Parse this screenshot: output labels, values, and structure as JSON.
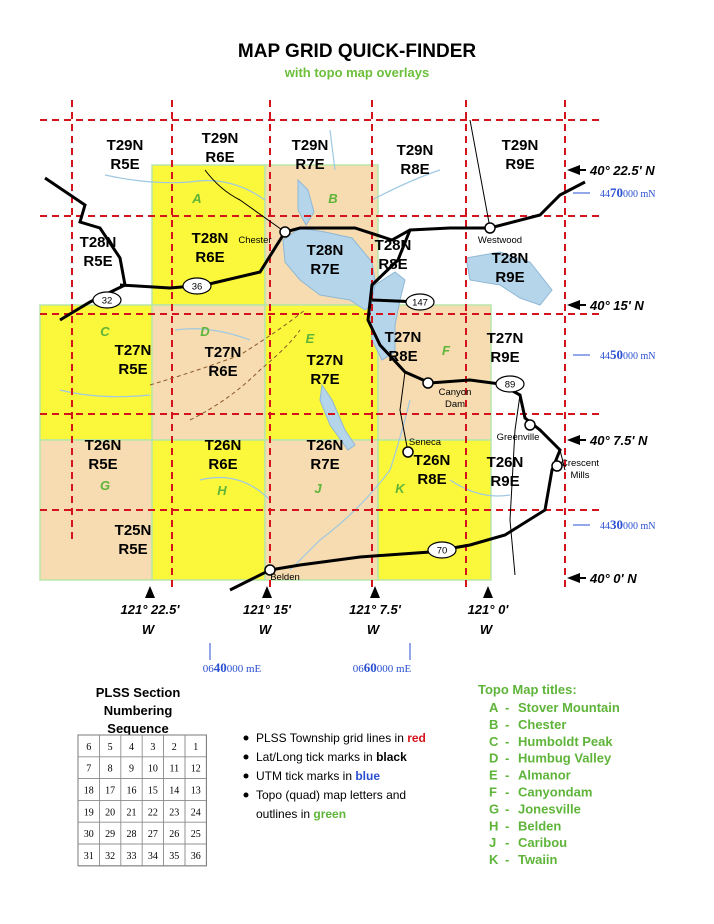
{
  "header": {
    "title": "MAP GRID QUICK-FINDER",
    "subtitle": "with topo map overlays"
  },
  "townships": [
    [
      "T29N",
      "R5E"
    ],
    [
      "T29N",
      "R6E"
    ],
    [
      "T29N",
      "R7E"
    ],
    [
      "T29N",
      "R8E"
    ],
    [
      "T29N",
      "R9E"
    ],
    [
      "T28N",
      "R5E"
    ],
    [
      "T28N",
      "R6E"
    ],
    [
      "T28N",
      "R7E"
    ],
    [
      "T28N",
      "R8E"
    ],
    [
      "T28N",
      "R9E"
    ],
    [
      "T27N",
      "R5E"
    ],
    [
      "T27N",
      "R6E"
    ],
    [
      "T27N",
      "R7E"
    ],
    [
      "T27N",
      "R8E"
    ],
    [
      "T27N",
      "R9E"
    ],
    [
      "T26N",
      "R5E"
    ],
    [
      "T26N",
      "R6E"
    ],
    [
      "T26N",
      "R7E"
    ],
    [
      "T26N",
      "R8E"
    ],
    [
      "T26N",
      "R9E"
    ],
    [
      "T25N",
      "R5E"
    ]
  ],
  "quads": [
    "A",
    "B",
    "C",
    "D",
    "E",
    "F",
    "G",
    "H",
    "J",
    "K"
  ],
  "places": [
    [
      "Chester"
    ],
    [
      "Westwood"
    ],
    [
      "Canyon",
      "Dam"
    ],
    [
      "Seneca"
    ],
    [
      "Greenville"
    ],
    [
      "Crescent",
      "Mills"
    ],
    [
      "Belden"
    ]
  ],
  "highways": [
    "32",
    "36",
    "147",
    "89",
    "70"
  ],
  "latitudes": [
    "40° 22.5' N",
    "40° 15' N",
    "40° 7.5' N",
    "40° 0' N"
  ],
  "longitudes": [
    [
      "121° 22.5'",
      "W"
    ],
    [
      "121° 15'",
      "W"
    ],
    [
      "121° 7.5'",
      "W"
    ],
    [
      "121° 0'",
      "W"
    ]
  ],
  "utm_north": [
    [
      "44",
      "70",
      "000 mN"
    ],
    [
      "44",
      "50",
      "000 mN"
    ],
    [
      "44",
      "30",
      "000 mN"
    ]
  ],
  "utm_east": [
    [
      "06",
      "40",
      "000 mE"
    ],
    [
      "06",
      "60",
      "000 mE"
    ]
  ],
  "plss": {
    "title": [
      "PLSS Section",
      "Numbering",
      "Sequence"
    ],
    "rows": [
      [
        "6",
        "5",
        "4",
        "3",
        "2",
        "1"
      ],
      [
        "7",
        "8",
        "9",
        "10",
        "11",
        "12"
      ],
      [
        "18",
        "17",
        "16",
        "15",
        "14",
        "13"
      ],
      [
        "19",
        "20",
        "21",
        "22",
        "23",
        "24"
      ],
      [
        "30",
        "29",
        "28",
        "27",
        "26",
        "25"
      ],
      [
        "31",
        "32",
        "33",
        "34",
        "35",
        "36"
      ]
    ]
  },
  "legend": [
    [
      "PLSS Township grid lines in ",
      "red"
    ],
    [
      "Lat/Long tick marks in ",
      "black"
    ],
    [
      "UTM tick marks in ",
      "blue"
    ],
    [
      "Topo (quad) map letters and",
      "outlines in ",
      "green"
    ]
  ],
  "topo": {
    "heading": "Topo Map titles:",
    "items": [
      [
        "A",
        "-",
        "Stover Mountain"
      ],
      [
        "B",
        "-",
        "Chester"
      ],
      [
        "C",
        "-",
        "Humboldt Peak"
      ],
      [
        "D",
        "-",
        "Humbug Valley"
      ],
      [
        "E",
        "-",
        "Almanor"
      ],
      [
        "F",
        "-",
        "Canyondam"
      ],
      [
        "G",
        "-",
        "Jonesville"
      ],
      [
        "H",
        "-",
        "Belden"
      ],
      [
        "J",
        "-",
        "Caribou"
      ],
      [
        "K",
        "-",
        "Twaiin"
      ]
    ]
  }
}
